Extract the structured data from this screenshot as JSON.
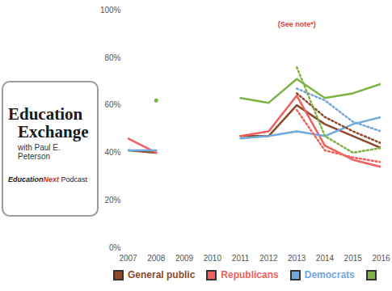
{
  "chart_data": {
    "type": "line",
    "logo": {
      "line1": "Education",
      "line2": "Exchange",
      "line3": "with Paul E. Peterson",
      "brand1": "Education",
      "brand2": "Next",
      "line4": "Podcast"
    },
    "annotations": [
      {
        "text": "(See note*)",
        "x": 2013,
        "y": 94,
        "color": "#e0403a"
      }
    ],
    "x": [
      2007,
      2008,
      2009,
      2010,
      2011,
      2012,
      2013,
      2014,
      2015,
      2016
    ],
    "xlim": [
      2007,
      2016
    ],
    "xticks": [
      2007,
      2008,
      2009,
      2010,
      2011,
      2012,
      2013,
      2014,
      2015,
      2016
    ],
    "ylim": [
      0,
      100
    ],
    "yticks": [
      {
        "value": 0,
        "label": "0%"
      },
      {
        "value": 20,
        "label": "20%"
      },
      {
        "value": 40,
        "label": "40%"
      },
      {
        "value": 60,
        "label": "60%"
      },
      {
        "value": 80,
        "label": "80%"
      },
      {
        "value": 100,
        "label": "100%"
      }
    ],
    "grid": false,
    "legend": "bottom",
    "series": [
      {
        "name": "General public",
        "color": "#8b4a2b",
        "line_style": "solid",
        "values": [
          41,
          40,
          null,
          null,
          47,
          47,
          60,
          52,
          47,
          42
        ]
      },
      {
        "name": "Republicans",
        "color": "#f0615d",
        "line_style": "solid",
        "values": [
          46,
          40,
          null,
          null,
          47,
          49,
          64,
          43,
          37,
          34
        ]
      },
      {
        "name": "Democrats",
        "color": "#6fa8dc",
        "line_style": "solid",
        "values": [
          41,
          41,
          null,
          null,
          46,
          47,
          49,
          47,
          52,
          55
        ]
      },
      {
        "color": "#7cb342",
        "line_style": "solid",
        "values": [
          null,
          62,
          null,
          null,
          63,
          61,
          71,
          63,
          65,
          69
        ]
      },
      {
        "name": "General public",
        "color": "#8b4a2b",
        "line_style": "dotted",
        "values": [
          null,
          null,
          null,
          null,
          null,
          null,
          65,
          55,
          49,
          44
        ]
      },
      {
        "name": "Republicans",
        "color": "#f0615d",
        "line_style": "dotted",
        "values": [
          null,
          null,
          null,
          null,
          null,
          null,
          58,
          41,
          38,
          36
        ]
      },
      {
        "name": "Democrats",
        "color": "#6fa8dc",
        "line_style": "dotted",
        "values": [
          null,
          null,
          null,
          null,
          null,
          null,
          67,
          62,
          53,
          49
        ]
      },
      {
        "color": "#7cb342",
        "line_style": "dotted",
        "values": [
          null,
          null,
          null,
          null,
          null,
          null,
          76,
          47,
          40,
          42
        ]
      }
    ]
  }
}
